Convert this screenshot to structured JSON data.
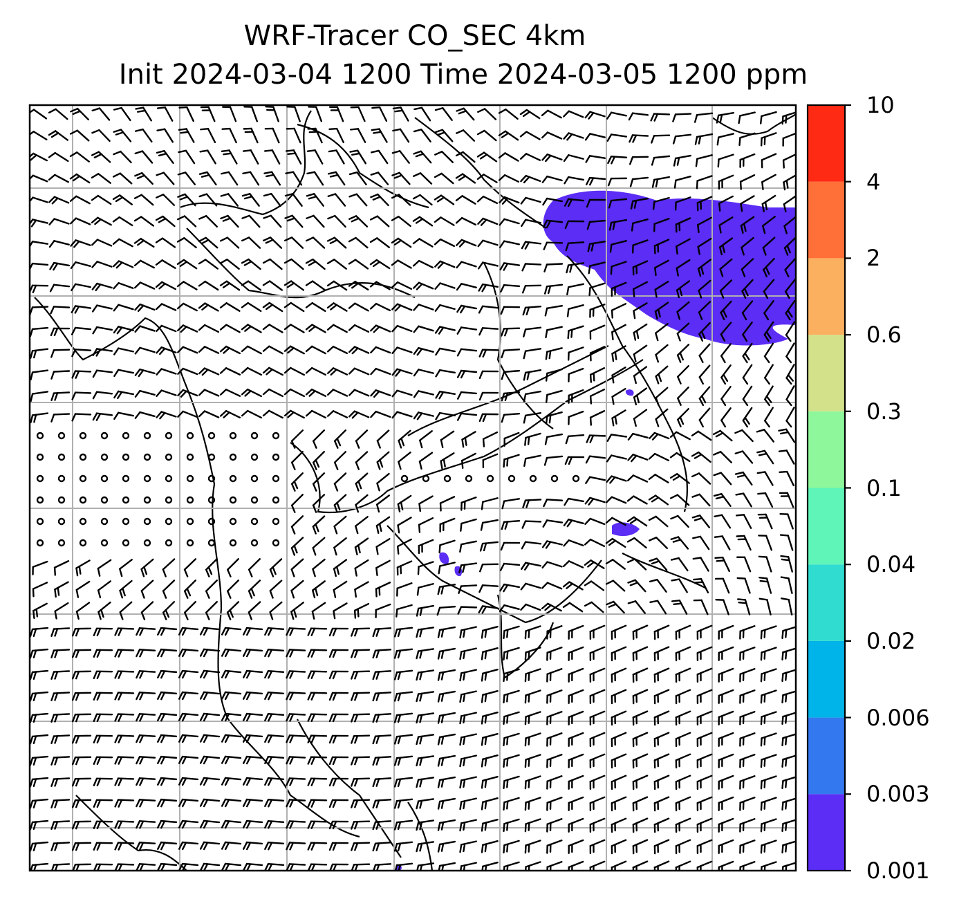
{
  "title": {
    "line1": "WRF-Tracer CO_SEC 4km",
    "line2": "Init 2024-03-04 1200 Time 2024-03-05 1200 ppm"
  },
  "colorbar": {
    "levels": [
      {
        "label": "0.001",
        "color": "#5b2df5"
      },
      {
        "label": "0.003",
        "color": "#3478f0"
      },
      {
        "label": "0.006",
        "color": "#00b3e8"
      },
      {
        "label": "0.02",
        "color": "#2fdccf"
      },
      {
        "label": "0.04",
        "color": "#5ff5b8"
      },
      {
        "label": "0.1",
        "color": "#8ef79b"
      },
      {
        "label": "0.3",
        "color": "#d2e18a"
      },
      {
        "label": "0.6",
        "color": "#fbb060"
      },
      {
        "label": "2",
        "color": "#ff7038"
      },
      {
        "label": "4",
        "color": "#ff2a14"
      }
    ],
    "top_label": "10"
  },
  "map": {
    "wind_symbol": "wind-barbs",
    "tracer_color": "#5b2df5",
    "gridline_color": "#b0b0b0",
    "coastline_color": "#000000"
  }
}
